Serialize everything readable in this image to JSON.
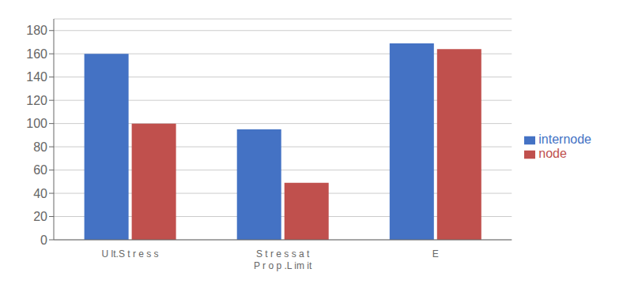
{
  "chart_data": {
    "type": "bar",
    "categories": [
      "U lt.S t r e s s",
      "S t r e s s a t\nP r o p .L im it",
      "E"
    ],
    "series": [
      {
        "name": "internode",
        "color": "#4472C4",
        "values": [
          160,
          95,
          169
        ]
      },
      {
        "name": "node",
        "color": "#C0504D",
        "values": [
          100,
          49,
          164
        ]
      }
    ],
    "ylim": [
      0,
      190
    ],
    "yticks": [
      0,
      20,
      40,
      60,
      80,
      100,
      120,
      140,
      160,
      180
    ],
    "grid": true,
    "legend": "right"
  }
}
